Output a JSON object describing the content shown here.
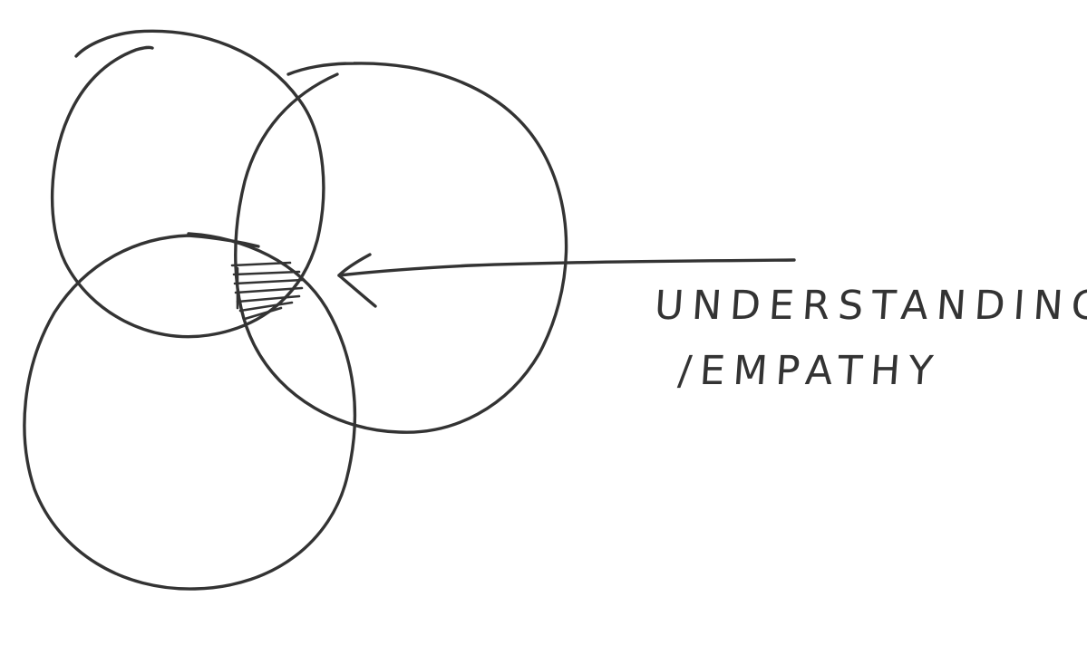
{
  "diagram": {
    "type": "venn-sketch",
    "circle_count": 3,
    "ink_color": "#333333",
    "background_color": "#ffffff",
    "highlighted_region": "three-way intersection (hatched)",
    "annotation": {
      "lines": [
        "UNDERSTANDING",
        "/EMPATHY"
      ],
      "arrow_points_to": "three-way intersection"
    }
  }
}
